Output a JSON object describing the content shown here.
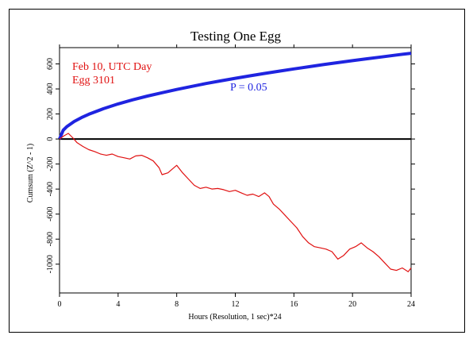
{
  "chart_data": {
    "type": "line",
    "title": "Testing One Egg",
    "xlabel": "Hours (Resolution, 1 sec)*24",
    "ylabel": "Cumsum (Z^2 - 1)",
    "xlim": [
      0,
      24
    ],
    "ylim": [
      -1230,
      730
    ],
    "x_ticks": [
      0,
      4,
      8,
      12,
      16,
      20,
      24
    ],
    "y_ticks": [
      600,
      400,
      200,
      0,
      -200,
      -400,
      -600,
      -800,
      -1000
    ],
    "annotations": {
      "date_label": "Feb 10, UTC Day",
      "egg_label": "Egg 3101",
      "p_label": "P = 0.05"
    },
    "series": [
      {
        "label": "P = 0.05",
        "color": "#1f24e0",
        "x": [
          0,
          0.25,
          0.5,
          1,
          1.5,
          2,
          3,
          4,
          5,
          6,
          7,
          8,
          9,
          10,
          11,
          12,
          13,
          14,
          15,
          16,
          17,
          18,
          19,
          20,
          21,
          22,
          23,
          24
        ],
        "y": [
          0,
          70,
          99,
          140,
          171,
          198,
          242,
          280,
          313,
          343,
          370,
          396,
          420,
          443,
          464,
          485,
          505,
          524,
          542,
          560,
          577,
          594,
          610,
          626,
          641,
          656,
          671,
          685
        ]
      },
      {
        "label": "Egg 3101",
        "color": "#e01010",
        "x": [
          0,
          0.3,
          0.6,
          0.9,
          1.2,
          1.6,
          2.0,
          2.4,
          2.8,
          3.2,
          3.6,
          4.0,
          4.4,
          4.8,
          5.2,
          5.6,
          6.0,
          6.4,
          6.8,
          7.0,
          7.4,
          7.8,
          8.0,
          8.4,
          8.8,
          9.2,
          9.6,
          10.0,
          10.4,
          10.8,
          11.2,
          11.6,
          12.0,
          12.4,
          12.8,
          13.2,
          13.6,
          14.0,
          14.3,
          14.6,
          15.0,
          15.4,
          15.8,
          16.2,
          16.6,
          17.0,
          17.4,
          17.8,
          18.2,
          18.6,
          19.0,
          19.4,
          19.8,
          20.2,
          20.6,
          21.0,
          21.4,
          21.8,
          22.2,
          22.6,
          23.0,
          23.4,
          23.8,
          24.0
        ],
        "y": [
          0,
          25,
          45,
          10,
          -30,
          -60,
          -85,
          -100,
          -120,
          -130,
          -120,
          -140,
          -150,
          -160,
          -135,
          -130,
          -150,
          -175,
          -230,
          -285,
          -270,
          -230,
          -210,
          -270,
          -320,
          -370,
          -395,
          -385,
          -400,
          -395,
          -405,
          -420,
          -410,
          -430,
          -450,
          -440,
          -460,
          -430,
          -460,
          -520,
          -560,
          -610,
          -660,
          -710,
          -780,
          -830,
          -860,
          -870,
          -880,
          -900,
          -960,
          -930,
          -880,
          -860,
          -830,
          -870,
          -900,
          -940,
          -990,
          -1040,
          -1050,
          -1030,
          -1060,
          -1030
        ]
      }
    ]
  }
}
